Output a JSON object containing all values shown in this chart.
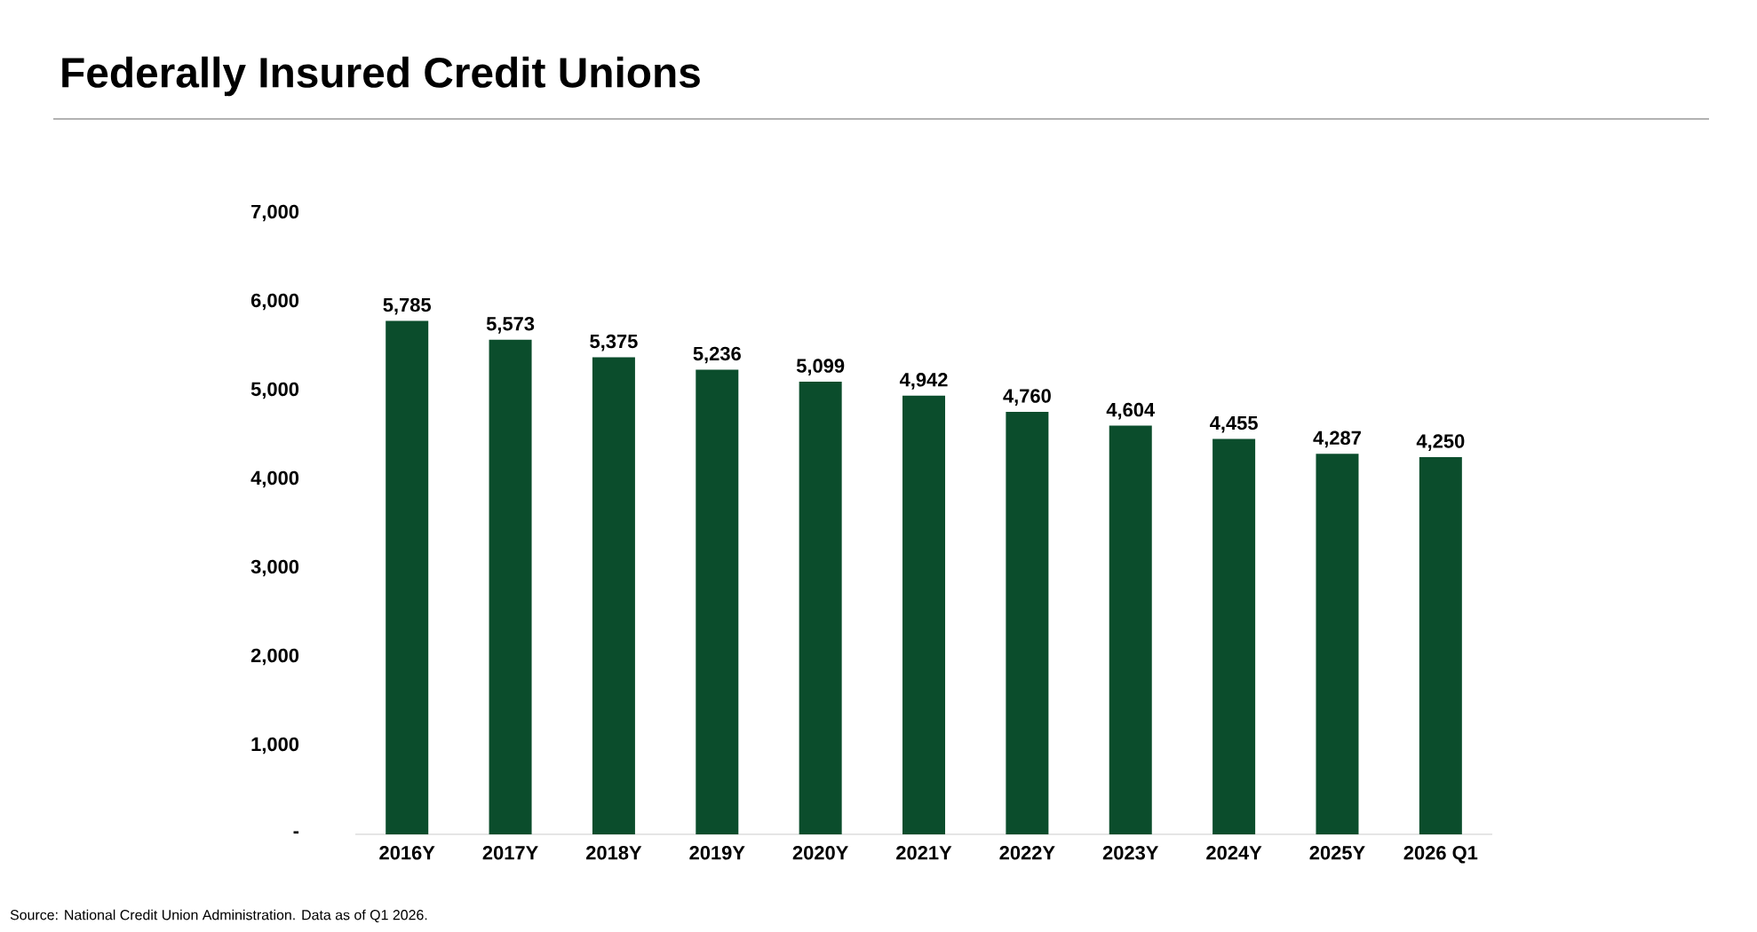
{
  "chart_data": {
    "type": "bar",
    "title": "Federally Insured Credit Unions",
    "categories": [
      "2016Y",
      "2017Y",
      "2018Y",
      "2019Y",
      "2020Y",
      "2021Y",
      "2022Y",
      "2023Y",
      "2024Y",
      "2025Y",
      "2026 Q1"
    ],
    "values": [
      5785,
      5573,
      5375,
      5236,
      5099,
      4942,
      4760,
      4604,
      4455,
      4287,
      4250
    ],
    "color": "#0b4d2c",
    "ylim": [
      0,
      7000
    ],
    "yticks": [
      {
        "value": 0,
        "label": "-"
      },
      {
        "value": 1000,
        "label": "1,000"
      },
      {
        "value": 2000,
        "label": "2,000"
      },
      {
        "value": 3000,
        "label": "3,000"
      },
      {
        "value": 4000,
        "label": "4,000"
      },
      {
        "value": 5000,
        "label": "5,000"
      },
      {
        "value": 6000,
        "label": "6,000"
      },
      {
        "value": 7000,
        "label": "7,000"
      }
    ],
    "value_labels": [
      "5,785",
      "5,573",
      "5,375",
      "5,236",
      "5,099",
      "4,942",
      "4,760",
      "4,604",
      "4,455",
      "4,287",
      "4,250"
    ],
    "grid": false,
    "annotations": [
      "Source: National Credit Union Administration. Data as of Q1 2026."
    ]
  }
}
